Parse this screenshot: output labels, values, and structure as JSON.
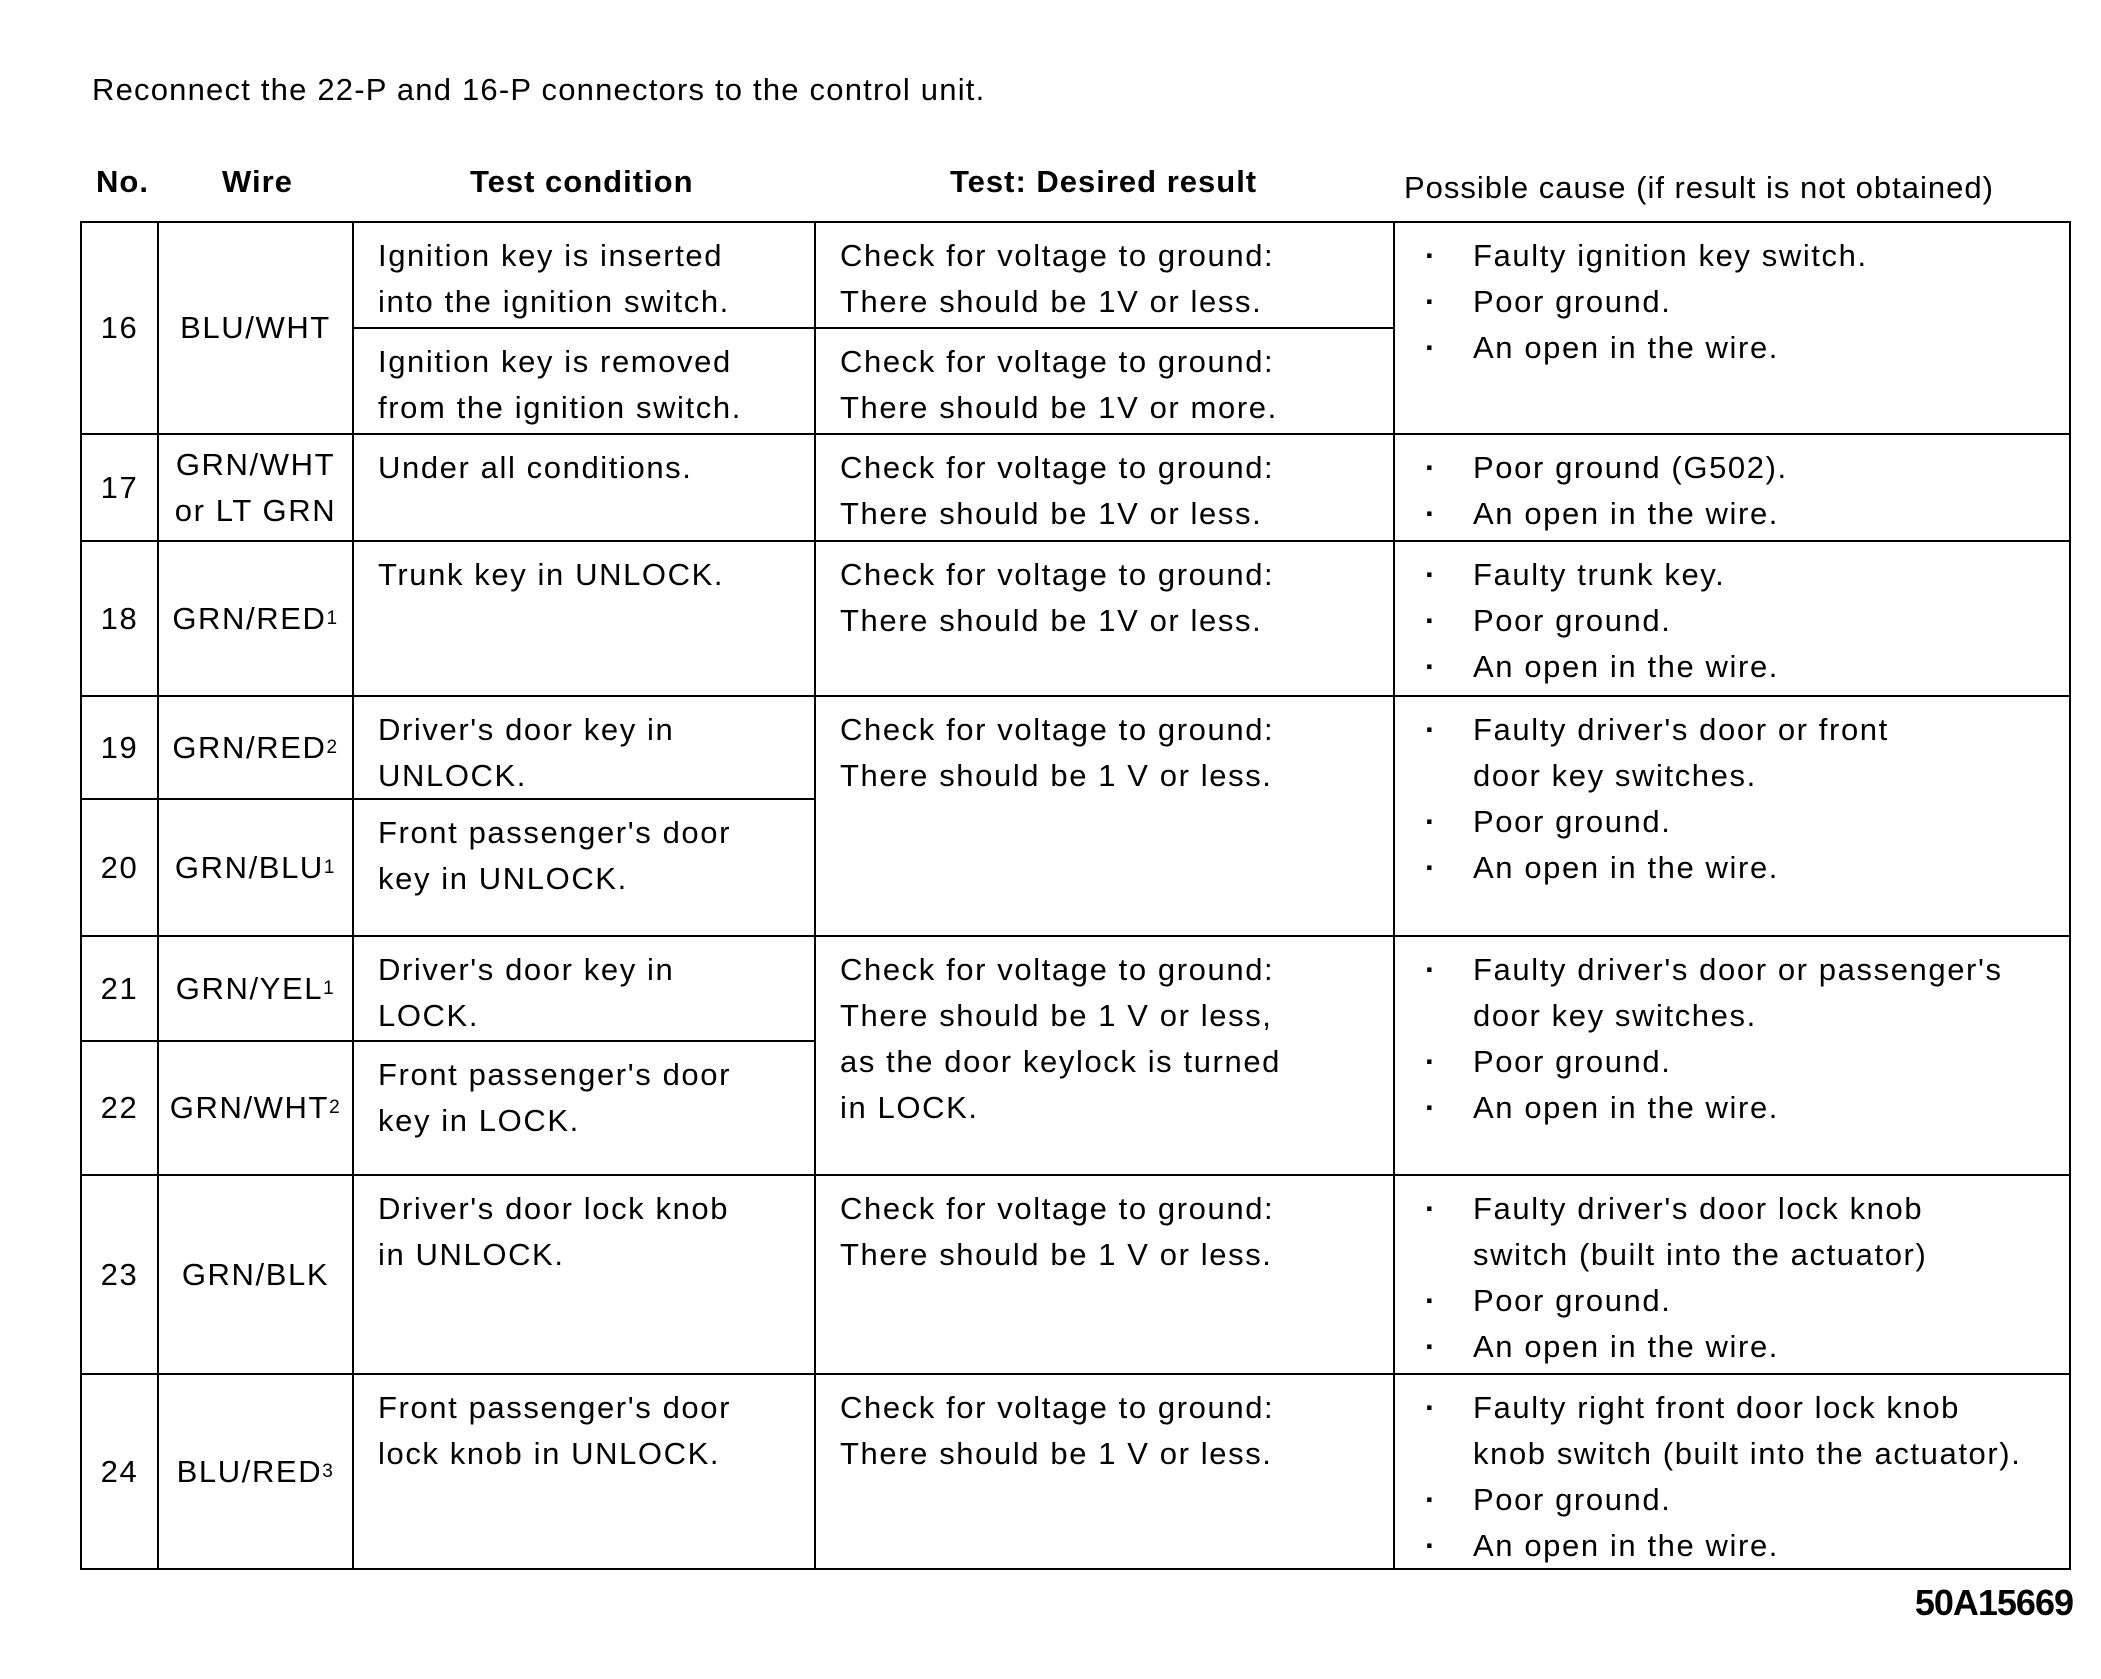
{
  "intro": "Reconnect the 22-P and 16-P connectors to the control unit.",
  "headers": {
    "no": "No.",
    "wire": "Wire",
    "condition": "Test condition",
    "result": "Test: Desired result",
    "cause": "Possible cause (if result is not obtained)"
  },
  "rows": [
    {
      "no": "16",
      "wire": "BLU/WHT",
      "sup": "",
      "conditions": [
        "Ignition key is inserted\ninto the ignition switch.",
        "Ignition key is removed\nfrom the ignition switch."
      ],
      "results": [
        "Check for voltage to ground:\nThere should be 1V or less.",
        "Check for voltage to ground:\nThere should be 1V or more."
      ],
      "causes": [
        "Faulty ignition key switch.",
        "Poor ground.",
        "An open in the wire."
      ]
    },
    {
      "no": "17",
      "wire": "GRN/WHT\nor LT GRN",
      "sup": "",
      "conditions": [
        "Under all conditions."
      ],
      "results": [
        "Check for voltage to ground:\nThere should be 1V or less."
      ],
      "causes": [
        "Poor ground (G502).",
        "An open in the wire."
      ]
    },
    {
      "no": "18",
      "wire": "GRN/RED",
      "sup": "1",
      "conditions": [
        "Trunk key in UNLOCK."
      ],
      "results": [
        "Check for voltage to ground:\nThere should be 1V or less."
      ],
      "causes": [
        "Faulty trunk key.",
        "Poor ground.",
        "An open in the wire."
      ]
    },
    {
      "no": "19",
      "wire": "GRN/RED",
      "sup": "2",
      "conditions": [
        "Driver's door key in\nUNLOCK."
      ],
      "results": [
        "Check for voltage to ground:\nThere should be 1 V or less."
      ],
      "causes": [
        "Faulty driver's door or front\ndoor key switches.",
        "Poor ground.",
        "An open in the wire."
      ]
    },
    {
      "no": "20",
      "wire": "GRN/BLU",
      "sup": "1",
      "conditions": [
        "Front passenger's door\nkey in UNLOCK."
      ],
      "results": [],
      "causes": []
    },
    {
      "no": "21",
      "wire": "GRN/YEL",
      "sup": "1",
      "conditions": [
        "Driver's door key in\nLOCK."
      ],
      "results": [
        "Check for voltage to ground:\nThere should be 1 V or less,\nas the door keylock is turned\nin LOCK."
      ],
      "causes": [
        "Faulty driver's door or passenger's\ndoor key switches.",
        "Poor ground.",
        "An open in the wire."
      ]
    },
    {
      "no": "22",
      "wire": "GRN/WHT",
      "sup": "2",
      "conditions": [
        "Front passenger's door\nkey in LOCK."
      ],
      "results": [],
      "causes": []
    },
    {
      "no": "23",
      "wire": "GRN/BLK",
      "sup": "",
      "conditions": [
        "Driver's door lock knob\nin UNLOCK."
      ],
      "results": [
        "Check for voltage to ground:\nThere should be 1 V or less."
      ],
      "causes": [
        "Faulty driver's door lock knob\nswitch (built into the actuator)",
        "Poor ground.",
        "An open in the wire."
      ]
    },
    {
      "no": "24",
      "wire": "BLU/RED",
      "sup": "3",
      "conditions": [
        "Front passenger's door\nlock knob in UNLOCK."
      ],
      "results": [
        "Check for voltage to ground:\nThere should be 1 V or less."
      ],
      "causes": [
        "Faulty right front door lock knob\nknob switch (built into the actuator).",
        "Poor ground.",
        "An open in the wire."
      ]
    }
  ],
  "figure_code": "50A15669"
}
